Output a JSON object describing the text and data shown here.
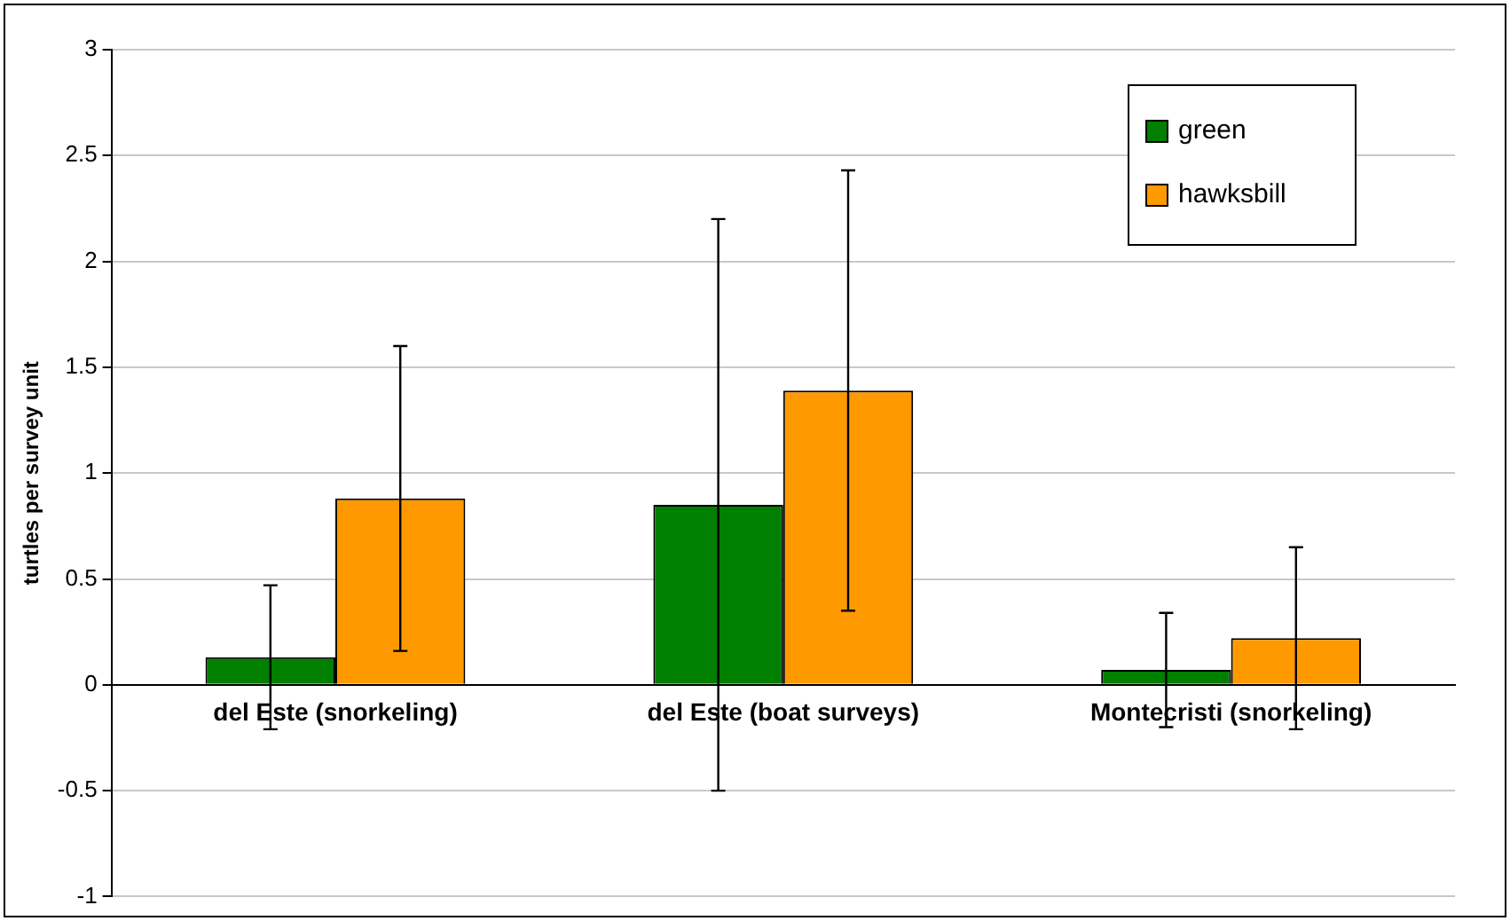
{
  "chart_data": {
    "type": "bar",
    "ylabel": "turtles per survey unit",
    "categories": [
      "del Este (snorkeling)",
      "del Este (boat surveys)",
      "Montecristi (snorkeling)"
    ],
    "series": [
      {
        "name": "green",
        "color": "#007f00",
        "values": [
          0.13,
          0.85,
          0.07
        ],
        "errors": [
          0.34,
          1.35,
          0.27
        ]
      },
      {
        "name": "hawksbill",
        "color": "#ff9900",
        "values": [
          0.88,
          1.39,
          0.22
        ],
        "errors": [
          0.72,
          1.04,
          0.43
        ]
      }
    ],
    "ylim": [
      -1,
      3
    ],
    "yticks": [
      -1,
      -0.5,
      0,
      0.5,
      1,
      1.5,
      2,
      2.5,
      3
    ],
    "grid": "y",
    "legend": "top right"
  }
}
